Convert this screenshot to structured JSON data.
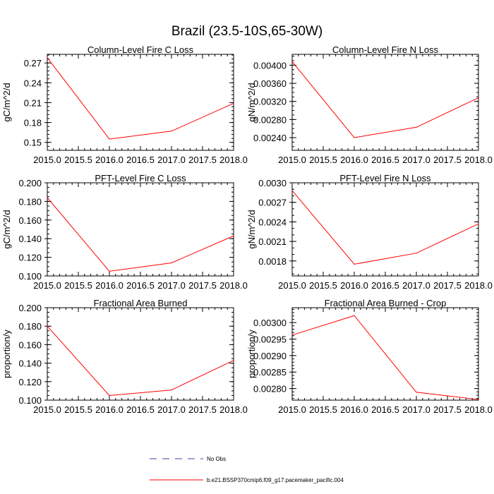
{
  "chart_data": [
    {
      "type": "line",
      "title": "Column-Level Fire C Loss",
      "ylabel": "gC/m^2/d",
      "xlim": [
        2015.0,
        2018.0
      ],
      "x_ticks": [
        "2015.0",
        "2015.5",
        "2016.0",
        "2016.5",
        "2017.0",
        "2017.5",
        "2018.0"
      ],
      "ylim": [
        0.138,
        0.283
      ],
      "y_ticks": [
        0.15,
        0.18,
        0.21,
        0.24,
        0.27
      ],
      "y_tick_labels": [
        "0.15",
        "0.18",
        "0.21",
        "0.24",
        "0.27"
      ],
      "y_minor_step": 0.006,
      "x": [
        2015.0,
        2016.0,
        2017.0,
        2018.0
      ],
      "series": [
        {
          "values": [
            0.278,
            0.155,
            0.167,
            0.209
          ],
          "color": "#ff0000"
        }
      ]
    },
    {
      "type": "line",
      "title": "Column-Level Fire N Loss",
      "ylabel": "gN/m^2/d",
      "xlim": [
        2015.0,
        2018.0
      ],
      "x_ticks": [
        "2015.0",
        "2015.5",
        "2016.0",
        "2016.5",
        "2017.0",
        "2017.5",
        "2018.0"
      ],
      "ylim": [
        0.00212,
        0.00424
      ],
      "y_ticks": [
        0.0024,
        0.0028,
        0.0032,
        0.0036,
        0.004
      ],
      "y_tick_labels": [
        "0.00240",
        "0.00280",
        "0.00320",
        "0.00360",
        "0.00400"
      ],
      "y_minor_step": 0.0001,
      "x": [
        2015.0,
        2016.0,
        2017.0,
        2018.0
      ],
      "series": [
        {
          "values": [
            0.00408,
            0.0024,
            0.00263,
            0.00328
          ],
          "color": "#ff0000"
        }
      ]
    },
    {
      "type": "line",
      "title": "PFT-Level Fire C Loss",
      "ylabel": "gC/m^2/d",
      "xlim": [
        2015.0,
        2018.0
      ],
      "x_ticks": [
        "2015.0",
        "2015.5",
        "2016.0",
        "2016.5",
        "2017.0",
        "2017.5",
        "2018.0"
      ],
      "ylim": [
        0.1,
        0.2
      ],
      "y_ticks": [
        0.1,
        0.12,
        0.14,
        0.16,
        0.18,
        0.2
      ],
      "y_tick_labels": [
        "0.100",
        "0.120",
        "0.140",
        "0.160",
        "0.180",
        "0.200"
      ],
      "y_minor_step": 0.005,
      "x": [
        2015.0,
        2016.0,
        2017.0,
        2018.0
      ],
      "series": [
        {
          "values": [
            0.184,
            0.105,
            0.114,
            0.143
          ],
          "color": "#ff0000"
        }
      ]
    },
    {
      "type": "line",
      "title": "PFT-Level Fire N Loss",
      "ylabel": "gN/m^2/d",
      "xlim": [
        2015.0,
        2018.0
      ],
      "x_ticks": [
        "2015.0",
        "2015.5",
        "2016.0",
        "2016.5",
        "2017.0",
        "2017.5",
        "2018.0"
      ],
      "ylim": [
        0.00157,
        0.003
      ],
      "y_ticks": [
        0.0018,
        0.0021,
        0.0024,
        0.0027,
        0.003
      ],
      "y_tick_labels": [
        "0.0018",
        "0.0021",
        "0.0024",
        "0.0027",
        "0.0030"
      ],
      "y_minor_step": 0.0001,
      "x": [
        2015.0,
        2016.0,
        2017.0,
        2018.0
      ],
      "series": [
        {
          "values": [
            0.00288,
            0.00175,
            0.00192,
            0.00237
          ],
          "color": "#ff0000"
        }
      ]
    },
    {
      "type": "line",
      "title": "Fractional Area Burned",
      "ylabel": "proportion/y",
      "xlim": [
        2015.0,
        2018.0
      ],
      "x_ticks": [
        "2015.0",
        "2015.5",
        "2016.0",
        "2016.5",
        "2017.0",
        "2017.5",
        "2018.0"
      ],
      "ylim": [
        0.1,
        0.2
      ],
      "y_ticks": [
        0.1,
        0.12,
        0.14,
        0.16,
        0.18,
        0.2
      ],
      "y_tick_labels": [
        "0.100",
        "0.120",
        "0.140",
        "0.160",
        "0.180",
        "0.200"
      ],
      "y_minor_step": 0.005,
      "x": [
        2015.0,
        2016.0,
        2017.0,
        2018.0
      ],
      "series": [
        {
          "values": [
            0.18,
            0.105,
            0.111,
            0.143
          ],
          "color": "#ff0000"
        }
      ]
    },
    {
      "type": "line",
      "title": "Fractional Area Burned - Crop",
      "ylabel": "proportion/y",
      "xlim": [
        2015.0,
        2018.0
      ],
      "x_ticks": [
        "2015.0",
        "2015.5",
        "2016.0",
        "2016.5",
        "2017.0",
        "2017.5",
        "2018.0"
      ],
      "ylim": [
        0.002765,
        0.003045
      ],
      "y_ticks": [
        0.0028,
        0.00285,
        0.0029,
        0.00295,
        0.003
      ],
      "y_tick_labels": [
        "0.00280",
        "0.00285",
        "0.00290",
        "0.00295",
        "0.00300"
      ],
      "y_minor_step": 1e-05,
      "x": [
        2015.0,
        2016.0,
        2017.0,
        2018.0
      ],
      "series": [
        {
          "values": [
            0.002962,
            0.003021,
            0.002789,
            0.002767
          ],
          "color": "#ff0000"
        }
      ]
    }
  ],
  "figure": {
    "title": "Brazil (23.5-10S,65-30W)",
    "legend": [
      {
        "label": "No Obs",
        "style": "dashed",
        "color": "#4040a0"
      },
      {
        "label": "b.e21.BSSP370cmip6.f09_g17.pacemaker_pacific.004",
        "style": "solid",
        "color": "#ff0000"
      }
    ]
  }
}
